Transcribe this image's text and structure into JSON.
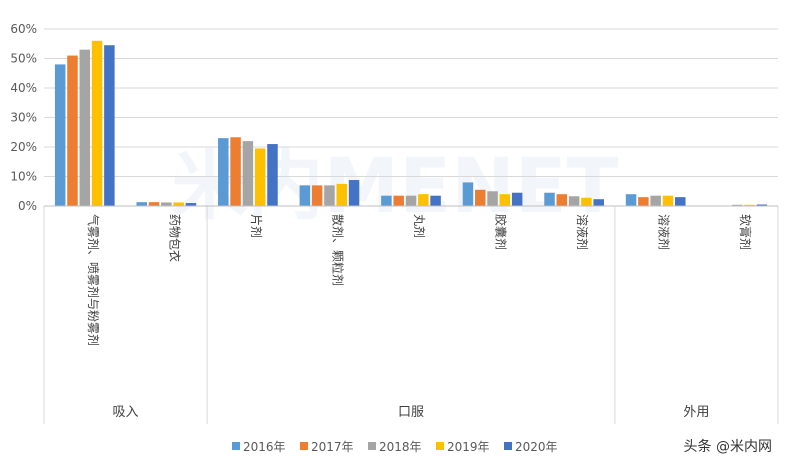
{
  "chart_data": {
    "type": "bar",
    "title": "",
    "xlabel": "",
    "ylabel": "",
    "ylim": [
      0,
      60
    ],
    "yticks": [
      "0%",
      "10%",
      "20%",
      "30%",
      "40%",
      "50%",
      "60%"
    ],
    "categories": [
      "气雾剂、喷雾剂与粉雾剂",
      "药物包衣",
      "片剂",
      "散剂、颗粒剂",
      "丸剂",
      "胶囊剂",
      "溶液剂",
      "溶液剂",
      "软膏剂"
    ],
    "groups": [
      {
        "name": "吸入",
        "span": [
          0,
          1
        ]
      },
      {
        "name": "口服",
        "span": [
          2,
          6
        ]
      },
      {
        "name": "外用",
        "span": [
          7,
          8
        ]
      }
    ],
    "series": [
      {
        "name": "2016年",
        "color": "#5B9BD5",
        "values": [
          48,
          1.3,
          23,
          7,
          3.5,
          8,
          4.5,
          4,
          0
        ]
      },
      {
        "name": "2017年",
        "color": "#ED7D31",
        "values": [
          51,
          1.3,
          23.3,
          7,
          3.5,
          5.5,
          4,
          3,
          0
        ]
      },
      {
        "name": "2018年",
        "color": "#A5A5A5",
        "values": [
          53,
          1.2,
          22,
          7,
          3.5,
          5,
          3.3,
          3.5,
          0.4
        ]
      },
      {
        "name": "2019年",
        "color": "#FFC000",
        "values": [
          56,
          1.2,
          19.5,
          7.5,
          4,
          4,
          2.8,
          3.5,
          0.4
        ]
      },
      {
        "name": "2020年",
        "color": "#4472C4",
        "values": [
          54.5,
          1,
          21,
          8.8,
          3.5,
          4.5,
          2.3,
          3,
          0.5
        ]
      }
    ],
    "legend_position": "bottom",
    "grid": true
  },
  "watermark": {
    "text": "米内MENET"
  },
  "credit": "头条 @米内网"
}
